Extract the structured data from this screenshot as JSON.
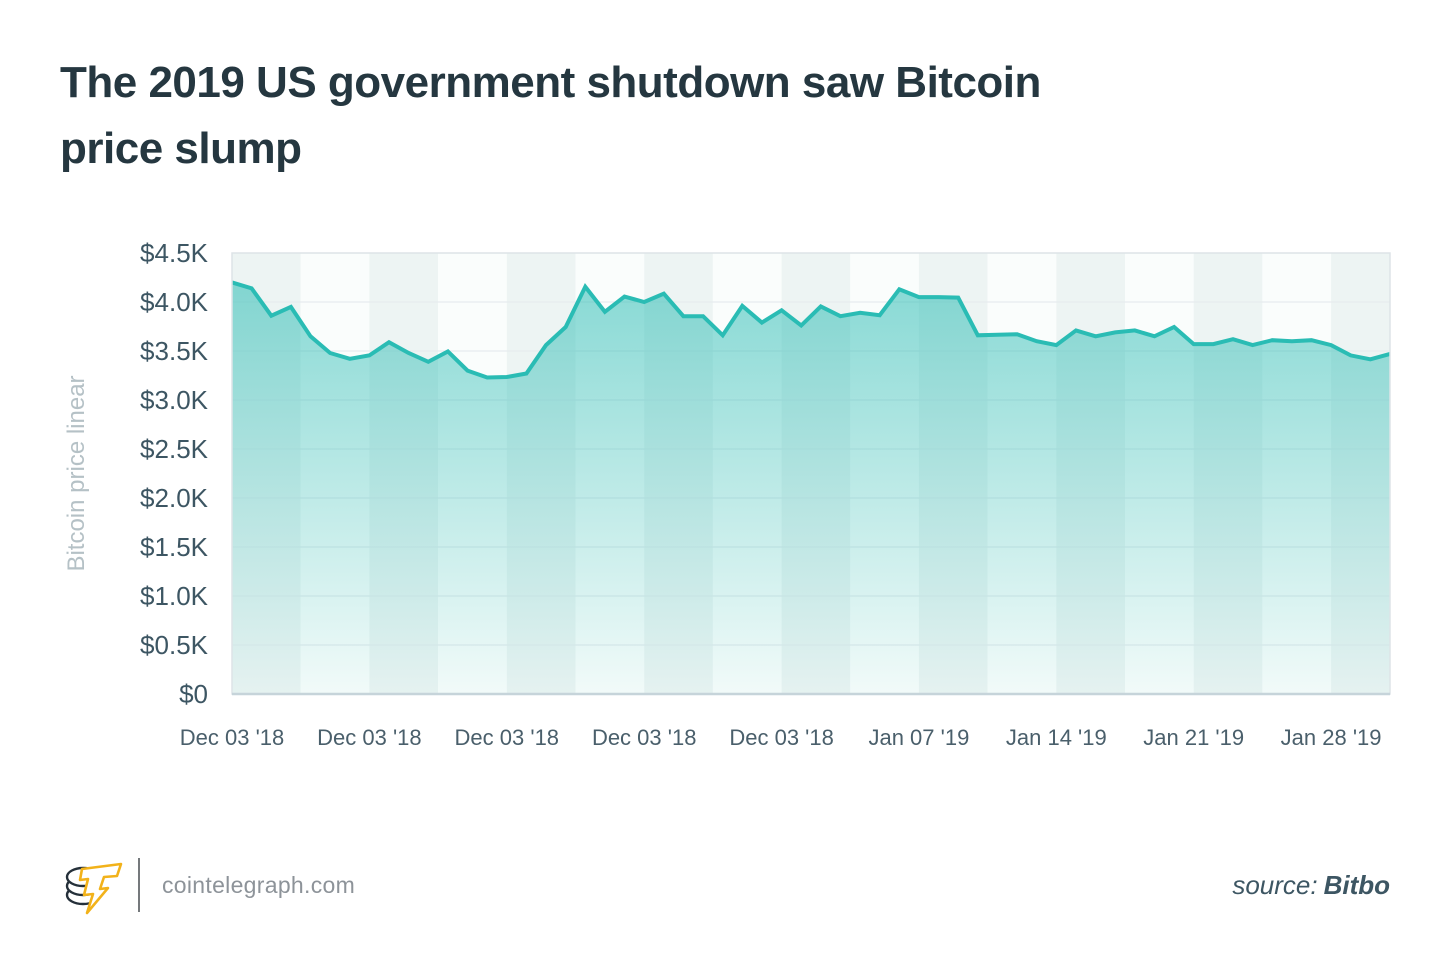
{
  "title": {
    "lines": [
      "The 2019 US government shutdown saw Bitcoin",
      "price slump"
    ]
  },
  "chart_data": {
    "type": "area",
    "title": "The 2019 US government shutdown saw Bitcoin price slump",
    "xlabel": "",
    "ylabel": "Bitcoin price linear",
    "ylim": [
      0,
      4500
    ],
    "y_ticks": [
      "$4.5K",
      "$4.0K",
      "$3.5K",
      "$3.0K",
      "$2.5K",
      "$2.0K",
      "$1.5K",
      "$1.0K",
      "$0.5K",
      "$0"
    ],
    "x_tick_labels": [
      "Dec 03 '18",
      "Dec 03 '18",
      "Dec 03 '18",
      "Dec 03 '18",
      "Dec 03 '18",
      "Jan 07 '19",
      "Jan 14 '19",
      "Jan 21 '19",
      "Jan 28 '19"
    ],
    "x_tick_indices": [
      0,
      7,
      14,
      21,
      28,
      35,
      42,
      49,
      56
    ],
    "grid": "horizontal",
    "legend": "none",
    "series": [
      {
        "name": "Bitcoin price (USD)",
        "values": [
          4200,
          4140,
          3860,
          3950,
          3650,
          3480,
          3420,
          3455,
          3590,
          3480,
          3390,
          3495,
          3300,
          3230,
          3235,
          3270,
          3560,
          3745,
          4155,
          3900,
          4055,
          4000,
          4085,
          3855,
          3855,
          3660,
          3960,
          3790,
          3915,
          3760,
          3955,
          3855,
          3890,
          3865,
          4130,
          4050,
          4050,
          4045,
          3660,
          3665,
          3670,
          3600,
          3560,
          3710,
          3650,
          3690,
          3710,
          3650,
          3745,
          3570,
          3570,
          3620,
          3560,
          3610,
          3600,
          3610,
          3560,
          3455,
          3415,
          3470
        ]
      }
    ],
    "colors": {
      "line": "#2abcb4",
      "fill_top_opacity": 0.55,
      "fill_bottom_opacity": 0.04,
      "band_dark": "#edf4f3",
      "band_light": "#fafdfc",
      "grid": "#e7ecee",
      "border": "#dde4e7",
      "axis_bottom": "#c6d4da",
      "y_tick_text": "#3d5663",
      "x_tick_text": "#4a5f6b",
      "ylabel_text": "#b5c1c6"
    }
  },
  "footer": {
    "site": "cointelegraph.com",
    "source_prefix": "source:",
    "source_name": "Bitbo",
    "logo": "cointelegraph-logo",
    "brand_yellow": "#f2b21a",
    "brand_dark": "#25303a"
  }
}
